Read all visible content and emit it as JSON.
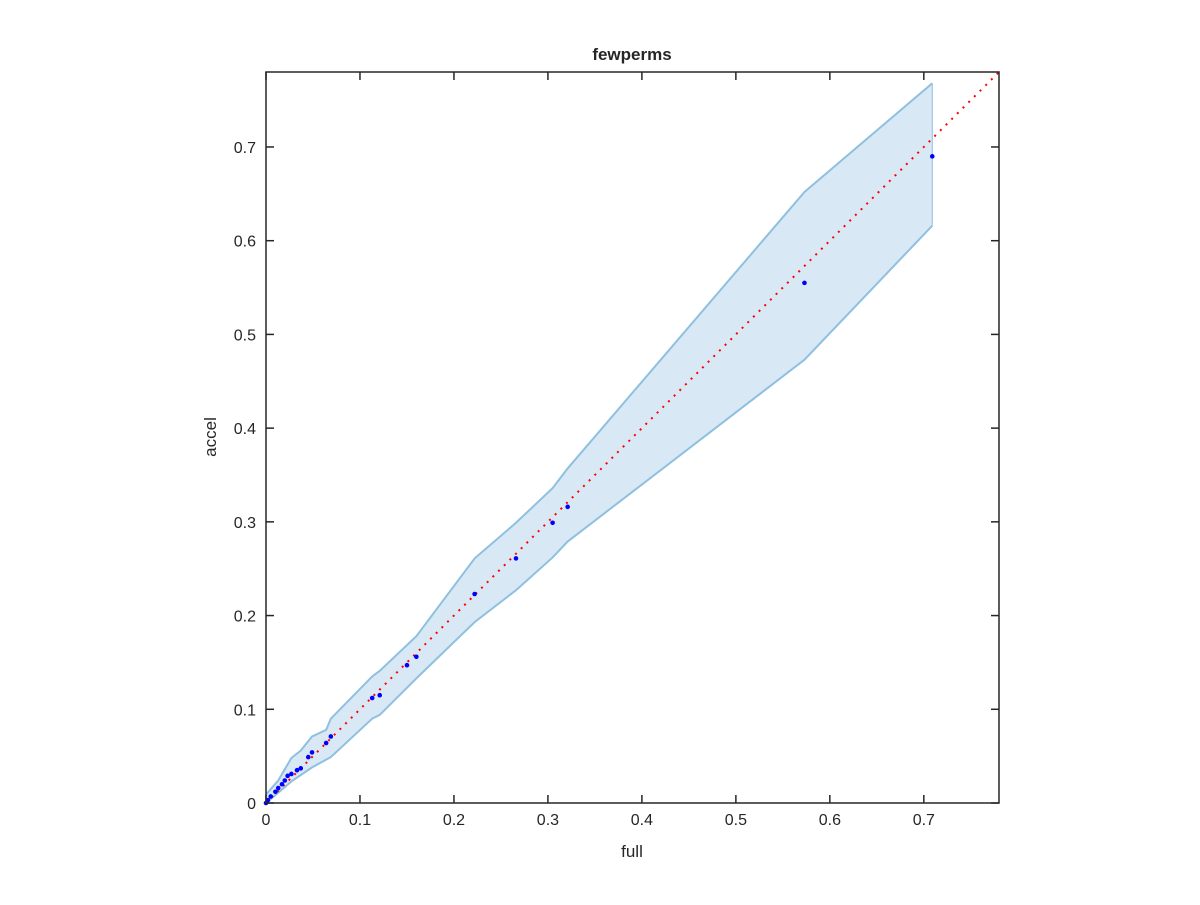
{
  "chart_data": {
    "type": "scatter",
    "title": "fewperms",
    "xlabel": "full",
    "ylabel": "accel",
    "xlim": [
      0,
      0.78
    ],
    "ylim": [
      0,
      0.78
    ],
    "xticks": [
      0,
      0.1,
      0.2,
      0.3,
      0.4,
      0.5,
      0.6,
      0.7
    ],
    "yticks": [
      0,
      0.1,
      0.2,
      0.3,
      0.4,
      0.5,
      0.6,
      0.7
    ],
    "xtick_labels": [
      "0",
      "0.1",
      "0.2",
      "0.3",
      "0.4",
      "0.5",
      "0.6",
      "0.7"
    ],
    "ytick_labels": [
      "0",
      "0.1",
      "0.2",
      "0.3",
      "0.4",
      "0.5",
      "0.6",
      "0.7"
    ],
    "grid": false,
    "colors": {
      "points": "#0000ff",
      "diagonal": "#ff0000",
      "band_fill": "#d9e8f5",
      "band_edge": "#8fc0e0"
    },
    "points": {
      "x": [
        0.709,
        0.573,
        0.321,
        0.305,
        0.266,
        0.222,
        0.16,
        0.15,
        0.121,
        0.113,
        0.069,
        0.064,
        0.049,
        0.045,
        0.037,
        0.033,
        0.027,
        0.023,
        0.02,
        0.017,
        0.013,
        0.01,
        0.005,
        0.002,
        0.0
      ],
      "y": [
        0.69,
        0.555,
        0.316,
        0.299,
        0.261,
        0.223,
        0.156,
        0.147,
        0.115,
        0.112,
        0.071,
        0.064,
        0.054,
        0.049,
        0.037,
        0.035,
        0.031,
        0.029,
        0.024,
        0.02,
        0.016,
        0.012,
        0.007,
        0.003,
        0.0
      ]
    },
    "band_upper": {
      "x": [
        0,
        0.013,
        0.027,
        0.037,
        0.049,
        0.064,
        0.069,
        0.113,
        0.121,
        0.16,
        0.222,
        0.266,
        0.305,
        0.321,
        0.573,
        0.709
      ],
      "y": [
        0.009,
        0.024,
        0.048,
        0.056,
        0.071,
        0.078,
        0.09,
        0.135,
        0.141,
        0.178,
        0.261,
        0.299,
        0.336,
        0.357,
        0.652,
        0.768
      ]
    },
    "band_lower": {
      "x": [
        0,
        0.013,
        0.027,
        0.049,
        0.069,
        0.113,
        0.121,
        0.16,
        0.222,
        0.266,
        0.305,
        0.321,
        0.573,
        0.709
      ],
      "y": [
        0,
        0.011,
        0.023,
        0.038,
        0.049,
        0.09,
        0.094,
        0.133,
        0.193,
        0.227,
        0.262,
        0.279,
        0.473,
        0.616
      ]
    },
    "diagonal": {
      "style": "dotted",
      "from": [
        0,
        0
      ],
      "to": [
        0.78,
        0.78
      ]
    }
  }
}
